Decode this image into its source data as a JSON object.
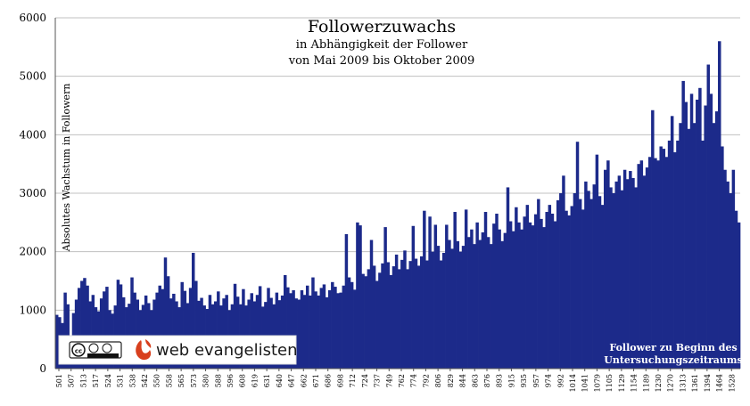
{
  "chart_data": {
    "type": "bar",
    "title": "Followerzuwachs",
    "subtitle_lines": [
      "in Abhängigkeit der Follower",
      "von Mai 2009 bis Oktober 2009"
    ],
    "xlabel": "",
    "ylabel": "Absolutes Wachstum in Followern",
    "annotation_lines": [
      "Follower zu Beginn des",
      "Untersuchungszeitraums"
    ],
    "ylim": [
      0,
      6000
    ],
    "yticks": [
      0,
      1000,
      2000,
      3000,
      4000,
      5000,
      6000
    ],
    "grid": true,
    "bar_color": "#1c2a8a",
    "x_tick_labels": [
      "501",
      "507",
      "513",
      "517",
      "524",
      "531",
      "538",
      "542",
      "550",
      "558",
      "565",
      "573",
      "580",
      "588",
      "596",
      "608",
      "619",
      "631",
      "640",
      "647",
      "662",
      "671",
      "686",
      "698",
      "712",
      "724",
      "737",
      "749",
      "762",
      "774",
      "792",
      "806",
      "829",
      "844",
      "863",
      "876",
      "893",
      "915",
      "935",
      "957",
      "974",
      "992",
      "1014",
      "1041",
      "1079",
      "1105",
      "1129",
      "1154",
      "1189",
      "1230",
      "1270",
      "1313",
      "1361",
      "1394",
      "1464",
      "1528"
    ],
    "series": [
      {
        "values": [
          920,
          880,
          780,
          1300,
          1100,
          520,
          950,
          1180,
          1380,
          1500,
          1550,
          1420,
          1150,
          1260,
          1050,
          980,
          1200,
          1320,
          1400,
          1000,
          940,
          1080,
          1520,
          1440,
          1220,
          1050,
          1110,
          1560,
          1300,
          1180,
          1000,
          1090,
          1250,
          1120,
          1000,
          1180,
          1300,
          1420,
          1360,
          1900,
          1580,
          1200,
          1280,
          1150,
          1050,
          1480,
          1330,
          1120,
          1380,
          1980,
          1500,
          1160,
          1210,
          1080,
          1020,
          1260,
          1100,
          1150,
          1320,
          1080,
          1200,
          1260,
          1000,
          1100,
          1450,
          1230,
          1100,
          1360,
          1080,
          1180,
          1290,
          1150,
          1260,
          1410,
          1060,
          1140,
          1380,
          1210,
          1100,
          1300,
          1170,
          1250,
          1600,
          1390,
          1290,
          1340,
          1200,
          1180,
          1340,
          1260,
          1420,
          1250,
          1560,
          1320,
          1250,
          1380,
          1440,
          1220,
          1340,
          1480,
          1400,
          1290,
          1300,
          1420,
          2300,
          1560,
          1480,
          1350,
          2500,
          2450,
          1620,
          1580,
          1700,
          2200,
          1760,
          1500,
          1640,
          1800,
          2420,
          1820,
          1600,
          1750,
          1950,
          1700,
          1860,
          2020,
          1700,
          1840,
          2440,
          1880,
          1760,
          1920,
          2700,
          1850,
          2600,
          2000,
          2460,
          2100,
          1850,
          1980,
          2460,
          2200,
          2050,
          2680,
          2180,
          2000,
          2100,
          2720,
          2250,
          2380,
          2130,
          2500,
          2200,
          2330,
          2680,
          2250,
          2130,
          2480,
          2650,
          2380,
          2180,
          2320,
          3100,
          2520,
          2350,
          2760,
          2500,
          2380,
          2600,
          2800,
          2500,
          2450,
          2640,
          2900,
          2560,
          2420,
          2680,
          2800,
          2650,
          2520,
          2880,
          3000,
          3300,
          2700,
          2620,
          2780,
          3000,
          3880,
          2900,
          2720,
          3200,
          3040,
          2900,
          3150,
          3660,
          2950,
          2800,
          3400,
          3560,
          3100,
          3000,
          3200,
          3300,
          3050,
          3400,
          3240,
          3380,
          3260,
          3100,
          3500,
          3560,
          3300,
          3440,
          3620,
          4420,
          3600,
          3560,
          3800,
          3760,
          3620,
          3900,
          4320,
          3700,
          3900,
          4200,
          4920,
          4560,
          4100,
          4700,
          4200,
          4600,
          4800,
          3900,
          4500,
          5200,
          4700,
          4200,
          4400,
          5600,
          3800,
          3400,
          3200,
          3000,
          3400,
          2700,
          2500
        ]
      }
    ]
  }
}
